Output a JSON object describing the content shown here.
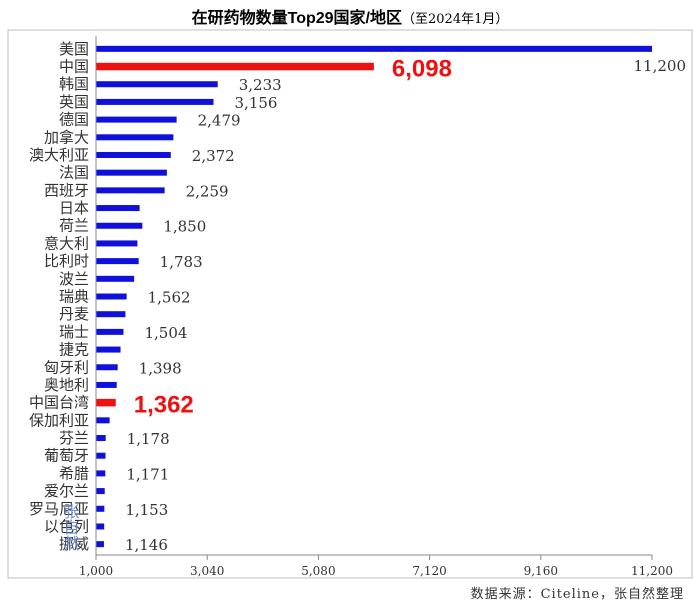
{
  "title": "在研药物数量Top29国家/地区",
  "subtitle": "（至2024年1月）",
  "footer": "数据来源：Citeline，张自然整理",
  "watermark": "张自然",
  "colors": {
    "default": "#1010dd",
    "highlight": "#ee1111"
  },
  "chart_data": {
    "type": "bar",
    "orientation": "horizontal",
    "categories": [
      "美国",
      "中国",
      "韩国",
      "英国",
      "德国",
      "加拿大",
      "澳大利亚",
      "法国",
      "西班牙",
      "日本",
      "荷兰",
      "意大利",
      "比利时",
      "波兰",
      "瑞典",
      "丹麦",
      "瑞士",
      "捷克",
      "匈牙利",
      "奥地利",
      "中国台湾",
      "保加利亚",
      "芬兰",
      "葡萄牙",
      "希腊",
      "爱尔兰",
      "罗马尼亚",
      "以色列",
      "挪威"
    ],
    "values": [
      11200,
      6098,
      3233,
      3156,
      2479,
      2420,
      2372,
      2300,
      2259,
      1800,
      1850,
      1760,
      1783,
      1700,
      1562,
      1540,
      1504,
      1450,
      1398,
      1380,
      1362,
      1250,
      1178,
      1175,
      1171,
      1160,
      1153,
      1150,
      1146
    ],
    "labels": [
      "11,200",
      "6,098",
      "3,233",
      "3,156",
      "2,479",
      "",
      "2,372",
      "",
      "2,259",
      "",
      "1,850",
      "",
      "1,783",
      "",
      "1,562",
      "",
      "1,504",
      "",
      "1,398",
      "",
      "1,362",
      "",
      "1,178",
      "",
      "1,171",
      "",
      "1,153",
      "",
      "1,146"
    ],
    "highlight": [
      "中国",
      "中国台湾"
    ],
    "xlim": [
      1000,
      11200
    ],
    "xticks": [
      "1,000",
      "3,040",
      "5,080",
      "7,120",
      "9,160",
      "11,200"
    ],
    "xtick_values": [
      1000,
      3040,
      5080,
      7120,
      9160,
      11200
    ],
    "grid": false,
    "legend": "none"
  }
}
